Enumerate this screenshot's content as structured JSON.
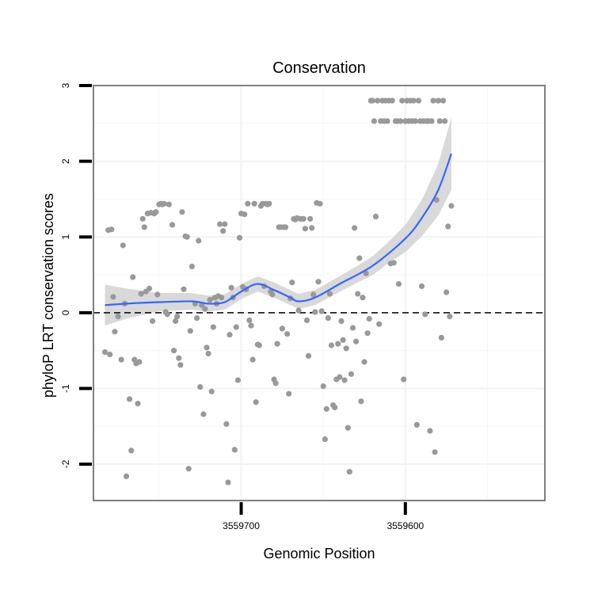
{
  "chart_data": {
    "type": "scatter",
    "title": "Conservation",
    "xlabel": "Genomic Position",
    "ylabel": "phyloP LRT conservation scores",
    "x_reversed": true,
    "xlim": [
      3559790,
      3559515
    ],
    "ylim": [
      -2.48,
      3.0
    ],
    "x_ticks": [
      3559700,
      3559600
    ],
    "x_tick_labels": [
      "3559700",
      "3559600"
    ],
    "y_ticks": [
      -2,
      -1,
      0,
      1,
      2,
      3
    ],
    "y_tick_labels": [
      "-2",
      "-1",
      "0",
      "1",
      "2",
      "3"
    ],
    "y_tick_rotated": true,
    "grid": true,
    "reference_line": {
      "y": 0,
      "style": "dashed",
      "color": "#000000"
    },
    "point_color": "#999999",
    "smooth_color": "#3366ff",
    "band_color": "#d9d9d9",
    "points": [
      [
        3559783,
        -0.52
      ],
      [
        3559781,
        1.09
      ],
      [
        3559780,
        -0.55
      ],
      [
        3559779,
        1.1
      ],
      [
        3559778,
        0.21
      ],
      [
        3559777,
        -0.25
      ],
      [
        3559775,
        -0.05
      ],
      [
        3559773,
        -0.62
      ],
      [
        3559772,
        0.89
      ],
      [
        3559771,
        0.12
      ],
      [
        3559770,
        -2.16
      ],
      [
        3559768,
        -1.14
      ],
      [
        3559767,
        -1.82
      ],
      [
        3559766,
        0.47
      ],
      [
        3559765,
        -0.62
      ],
      [
        3559764,
        -0.67
      ],
      [
        3559763,
        -1.2
      ],
      [
        3559762,
        -0.65
      ],
      [
        3559761,
        0.25
      ],
      [
        3559760,
        1.24
      ],
      [
        3559759,
        1.13
      ],
      [
        3559758,
        0.28
      ],
      [
        3559757,
        1.31
      ],
      [
        3559756,
        0.32
      ],
      [
        3559755,
        1.32
      ],
      [
        3559754,
        -0.11
      ],
      [
        3559753,
        1.31
      ],
      [
        3559752,
        1.33
      ],
      [
        3559751,
        0.24
      ],
      [
        3559750,
        1.43
      ],
      [
        3559749,
        1.44
      ],
      [
        3559748,
        1.43
      ],
      [
        3559747,
        1.44
      ],
      [
        3559746,
        0.01
      ],
      [
        3559745,
        -0.02
      ],
      [
        3559744,
        1.43
      ],
      [
        3559742,
        1.16
      ],
      [
        3559741,
        -0.5
      ],
      [
        3559740,
        -0.11
      ],
      [
        3559739,
        -0.05
      ],
      [
        3559738,
        -0.6
      ],
      [
        3559737,
        -0.69
      ],
      [
        3559736,
        1.33
      ],
      [
        3559735,
        0.31
      ],
      [
        3559734,
        1.01
      ],
      [
        3559733,
        1.0
      ],
      [
        3559732,
        -2.06
      ],
      [
        3559731,
        -0.24
      ],
      [
        3559730,
        0.61
      ],
      [
        3559728,
        0.12
      ],
      [
        3559727,
        -0.07
      ],
      [
        3559726,
        0.95
      ],
      [
        3559725,
        -0.98
      ],
      [
        3559724,
        0.1
      ],
      [
        3559723,
        -1.34
      ],
      [
        3559722,
        0.05
      ],
      [
        3559721,
        -0.46
      ],
      [
        3559720,
        -0.54
      ],
      [
        3559719,
        0.17
      ],
      [
        3559718,
        -1.04
      ],
      [
        3559717,
        -0.19
      ],
      [
        3559716,
        0.2
      ],
      [
        3559715,
        0.12
      ],
      [
        3559714,
        0.22
      ],
      [
        3559713,
        1.17
      ],
      [
        3559712,
        0.2
      ],
      [
        3559711,
        1.08
      ],
      [
        3559710,
        1.17
      ],
      [
        3559709,
        -1.47
      ],
      [
        3559708,
        -2.24
      ],
      [
        3559707,
        -0.29
      ],
      [
        3559706,
        0.33
      ],
      [
        3559705,
        0.2
      ],
      [
        3559704,
        -1.81
      ],
      [
        3559703,
        -0.19
      ],
      [
        3559702,
        -0.89
      ],
      [
        3559701,
        0.99
      ],
      [
        3559700,
        1.31
      ],
      [
        3559699,
        0.34
      ],
      [
        3559698,
        1.3
      ],
      [
        3559697,
        0.31
      ],
      [
        3559696,
        1.44
      ],
      [
        3559695,
        -0.1
      ],
      [
        3559694,
        -0.17
      ],
      [
        3559693,
        -0.62
      ],
      [
        3559692,
        1.44
      ],
      [
        3559691,
        -1.18
      ],
      [
        3559690,
        -0.42
      ],
      [
        3559689,
        -0.43
      ],
      [
        3559688,
        1.41
      ],
      [
        3559687,
        1.44
      ],
      [
        3559686,
        0.35
      ],
      [
        3559685,
        1.44
      ],
      [
        3559684,
        1.43
      ],
      [
        3559683,
        1.44
      ],
      [
        3559682,
        0.28
      ],
      [
        3559681,
        0.24
      ],
      [
        3559680,
        -0.88
      ],
      [
        3559679,
        -0.93
      ],
      [
        3559678,
        -0.41
      ],
      [
        3559677,
        1.13
      ],
      [
        3559676,
        1.13
      ],
      [
        3559675,
        -0.21
      ],
      [
        3559674,
        1.13
      ],
      [
        3559673,
        1.13
      ],
      [
        3559672,
        -0.28
      ],
      [
        3559671,
        -1.07
      ],
      [
        3559670,
        0.19
      ],
      [
        3559669,
        0.4
      ],
      [
        3559668,
        1.24
      ],
      [
        3559667,
        1.23
      ],
      [
        3559666,
        1.25
      ],
      [
        3559665,
        0.03
      ],
      [
        3559664,
        1.24
      ],
      [
        3559663,
        1.24
      ],
      [
        3559662,
        1.24
      ],
      [
        3559661,
        1.11
      ],
      [
        3559660,
        -0.1
      ],
      [
        3559659,
        -0.57
      ],
      [
        3559658,
        1.24
      ],
      [
        3559657,
        1.12
      ],
      [
        3559656,
        0.24
      ],
      [
        3559655,
        0.01
      ],
      [
        3559654,
        1.45
      ],
      [
        3559653,
        0.41
      ],
      [
        3559652,
        1.44
      ],
      [
        3559651,
        0.02
      ],
      [
        3559650,
        -0.97
      ],
      [
        3559649,
        -1.67
      ],
      [
        3559648,
        -1.27
      ],
      [
        3559647,
        -0.07
      ],
      [
        3559646,
        0.25
      ],
      [
        3559645,
        -0.43
      ],
      [
        3559644,
        -1.22
      ],
      [
        3559643,
        -1.25
      ],
      [
        3559642,
        -0.88
      ],
      [
        3559641,
        -0.41
      ],
      [
        3559640,
        -0.85
      ],
      [
        3559639,
        -0.11
      ],
      [
        3559638,
        -0.36
      ],
      [
        3559637,
        -0.89
      ],
      [
        3559636,
        -0.47
      ],
      [
        3559635,
        -1.52
      ],
      [
        3559634,
        -2.1
      ],
      [
        3559633,
        -0.81
      ],
      [
        3559632,
        -0.2
      ],
      [
        3559631,
        1.12
      ],
      [
        3559630,
        -0.38
      ],
      [
        3559629,
        0.25
      ],
      [
        3559628,
        0.72
      ],
      [
        3559627,
        -1.17
      ],
      [
        3559626,
        0.2
      ],
      [
        3559625,
        -0.65
      ],
      [
        3559624,
        0.52
      ],
      [
        3559623,
        -0.27
      ],
      [
        3559622,
        -0.08
      ],
      [
        3559621,
        2.8
      ],
      [
        3559620,
        2.8
      ],
      [
        3559619,
        2.53
      ],
      [
        3559618,
        1.27
      ],
      [
        3559617,
        2.8
      ],
      [
        3559616,
        -0.15
      ],
      [
        3559615,
        2.53
      ],
      [
        3559614,
        2.8
      ],
      [
        3559613,
        2.53
      ],
      [
        3559612,
        2.8
      ],
      [
        3559611,
        2.53
      ],
      [
        3559610,
        2.8
      ],
      [
        3559609,
        0.65
      ],
      [
        3559608,
        2.8
      ],
      [
        3559607,
        0.66
      ],
      [
        3559606,
        2.53
      ],
      [
        3559605,
        2.53
      ],
      [
        3559604,
        0.38
      ],
      [
        3559603,
        2.53
      ],
      [
        3559602,
        2.8
      ],
      [
        3559601,
        -0.88
      ],
      [
        3559600,
        2.53
      ],
      [
        3559599,
        2.8
      ],
      [
        3559598,
        2.53
      ],
      [
        3559597,
        2.8
      ],
      [
        3559596,
        2.53
      ],
      [
        3559595,
        2.8
      ],
      [
        3559594,
        2.53
      ],
      [
        3559593,
        -1.48
      ],
      [
        3559592,
        2.8
      ],
      [
        3559591,
        2.53
      ],
      [
        3559590,
        0.35
      ],
      [
        3559589,
        2.53
      ],
      [
        3559588,
        -0.02
      ],
      [
        3559587,
        2.53
      ],
      [
        3559586,
        2.53
      ],
      [
        3559585,
        -1.56
      ],
      [
        3559584,
        2.53
      ],
      [
        3559583,
        2.8
      ],
      [
        3559582,
        -1.84
      ],
      [
        3559581,
        1.49
      ],
      [
        3559580,
        2.8
      ],
      [
        3559579,
        2.53
      ],
      [
        3559578,
        -0.33
      ],
      [
        3559577,
        2.8
      ],
      [
        3559576,
        2.53
      ],
      [
        3559575,
        0.27
      ],
      [
        3559574,
        1.14
      ],
      [
        3559573,
        -0.05
      ],
      [
        3559572,
        1.41
      ]
    ],
    "smooth": [
      [
        3559783,
        0.1
      ],
      [
        3559770,
        0.12
      ],
      [
        3559750,
        0.14
      ],
      [
        3559730,
        0.15
      ],
      [
        3559720,
        0.12
      ],
      [
        3559710,
        0.14
      ],
      [
        3559700,
        0.28
      ],
      [
        3559690,
        0.38
      ],
      [
        3559680,
        0.3
      ],
      [
        3559670,
        0.2
      ],
      [
        3559665,
        0.15
      ],
      [
        3559655,
        0.2
      ],
      [
        3559640,
        0.38
      ],
      [
        3559620,
        0.62
      ],
      [
        3559600,
        0.98
      ],
      [
        3559590,
        1.25
      ],
      [
        3559580,
        1.62
      ],
      [
        3559572,
        2.1
      ]
    ],
    "band_halfwidth": [
      [
        3559783,
        0.27
      ],
      [
        3559770,
        0.2
      ],
      [
        3559750,
        0.12
      ],
      [
        3559730,
        0.11
      ],
      [
        3559710,
        0.1
      ],
      [
        3559690,
        0.1
      ],
      [
        3559670,
        0.1
      ],
      [
        3559650,
        0.1
      ],
      [
        3559630,
        0.11
      ],
      [
        3559610,
        0.14
      ],
      [
        3559600,
        0.18
      ],
      [
        3559590,
        0.24
      ],
      [
        3559580,
        0.34
      ],
      [
        3559572,
        0.48
      ]
    ]
  }
}
